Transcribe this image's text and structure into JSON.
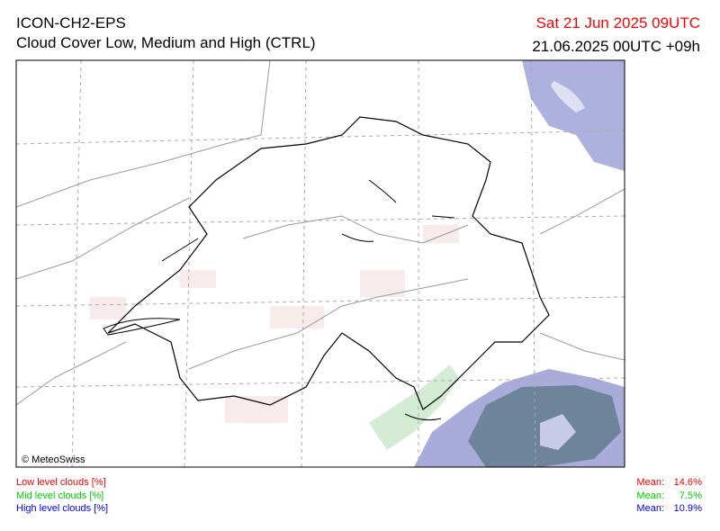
{
  "header": {
    "model": "ICON-CH2-EPS",
    "product": "Cloud Cover Low, Medium and High (CTRL)",
    "valid_time": "Sat 21 Jun 2025 09UTC",
    "run_time": "21.06.2025 00UTC +09h"
  },
  "map": {
    "credit": "© MeteoSwiss"
  },
  "legend": [
    {
      "label": "Low level clouds [%]",
      "mean_label": "Mean:",
      "mean": 14.6,
      "unit": "%",
      "color": "#ff0000"
    },
    {
      "label": "Mid level clouds [%]",
      "mean_label": "Mean:",
      "mean": 7.5,
      "unit": "%",
      "color": "#00cc00"
    },
    {
      "label": "High level clouds [%]",
      "mean_label": "Mean:",
      "mean": 10.9,
      "unit": "%",
      "color": "#0000ff"
    }
  ]
}
